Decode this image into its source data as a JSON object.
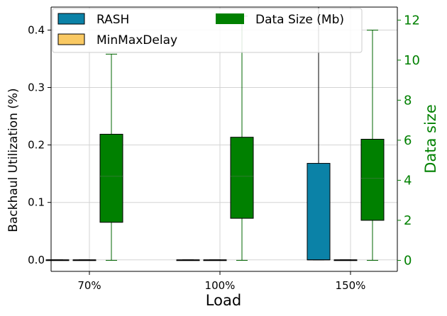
{
  "chart_data": {
    "type": "box",
    "categories": [
      "70%",
      "100%",
      "150%"
    ],
    "xlabel": "Load",
    "ylabel_left": "Backhaul Utilization (%)",
    "ylabel_right": "Data size",
    "ylim_left": [
      -0.02,
      0.44
    ],
    "ylim_right": [
      -0.55,
      12.65
    ],
    "yticks_left": [
      0.0,
      0.1,
      0.2,
      0.3,
      0.4
    ],
    "yticks_right": [
      0,
      2,
      4,
      6,
      8,
      10,
      12
    ],
    "grid": true,
    "legend_position": "top-left",
    "series": [
      {
        "name": "RASH",
        "axis": "left",
        "color": "#0b82a7",
        "boxes": [
          {
            "category": "70%",
            "whisker_low": 0.0,
            "q1": 0.0,
            "median": 0.0,
            "q3": 0.0,
            "whisker_high": 0.0
          },
          {
            "category": "100%",
            "whisker_low": 0.0,
            "q1": 0.0,
            "median": 0.0,
            "q3": 0.0,
            "whisker_high": 0.0
          },
          {
            "category": "150%",
            "whisker_low": 0.0,
            "q1": 0.0,
            "median": 0.0,
            "q3": 0.168,
            "whisker_high": 0.44
          }
        ]
      },
      {
        "name": "MinMaxDelay",
        "axis": "left",
        "color": "#f9c963",
        "boxes": [
          {
            "category": "70%",
            "whisker_low": 0.0,
            "q1": 0.0,
            "median": 0.0,
            "q3": 0.0,
            "whisker_high": 0.0
          },
          {
            "category": "100%",
            "whisker_low": 0.0,
            "q1": 0.0,
            "median": 0.0,
            "q3": 0.0,
            "whisker_high": 0.0
          },
          {
            "category": "150%",
            "whisker_low": 0.0,
            "q1": 0.0,
            "median": 0.0,
            "q3": 0.0,
            "whisker_high": 0.0
          }
        ]
      },
      {
        "name": "Data Size (Mb)",
        "axis": "right",
        "color": "#008000",
        "boxes": [
          {
            "category": "70%",
            "whisker_low": 0.0,
            "q1": 1.9,
            "median": 4.2,
            "q3": 6.3,
            "whisker_high": 10.3
          },
          {
            "category": "100%",
            "whisker_low": 0.0,
            "q1": 2.1,
            "median": 4.2,
            "q3": 6.15,
            "whisker_high": 12.2
          },
          {
            "category": "150%",
            "whisker_low": 0.0,
            "q1": 2.0,
            "median": 4.1,
            "q3": 6.05,
            "whisker_high": 11.5
          }
        ]
      }
    ]
  }
}
